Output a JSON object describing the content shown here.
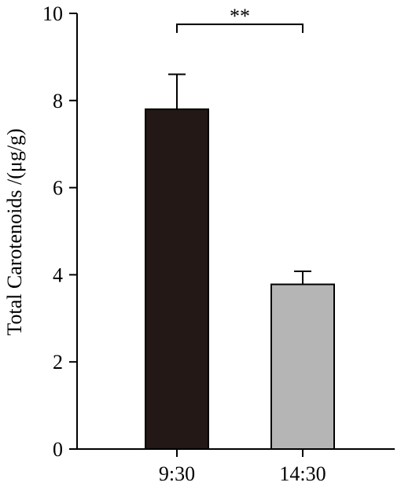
{
  "chart_data": {
    "type": "bar",
    "title": "",
    "xlabel": "",
    "ylabel": "Total Carotenoids /(μg/g)",
    "categories": [
      "9:30",
      "14:30"
    ],
    "values": [
      7.8,
      3.78
    ],
    "errors": [
      0.8,
      0.3
    ],
    "colors": [
      "#231815",
      "#b5b5b5"
    ],
    "ylim": [
      0,
      10
    ],
    "yticks": [
      0,
      2,
      4,
      6,
      8,
      10
    ],
    "grid": false,
    "legend": "none",
    "significance": {
      "from": 0,
      "to": 1,
      "label": "**",
      "y": 9.75
    }
  }
}
